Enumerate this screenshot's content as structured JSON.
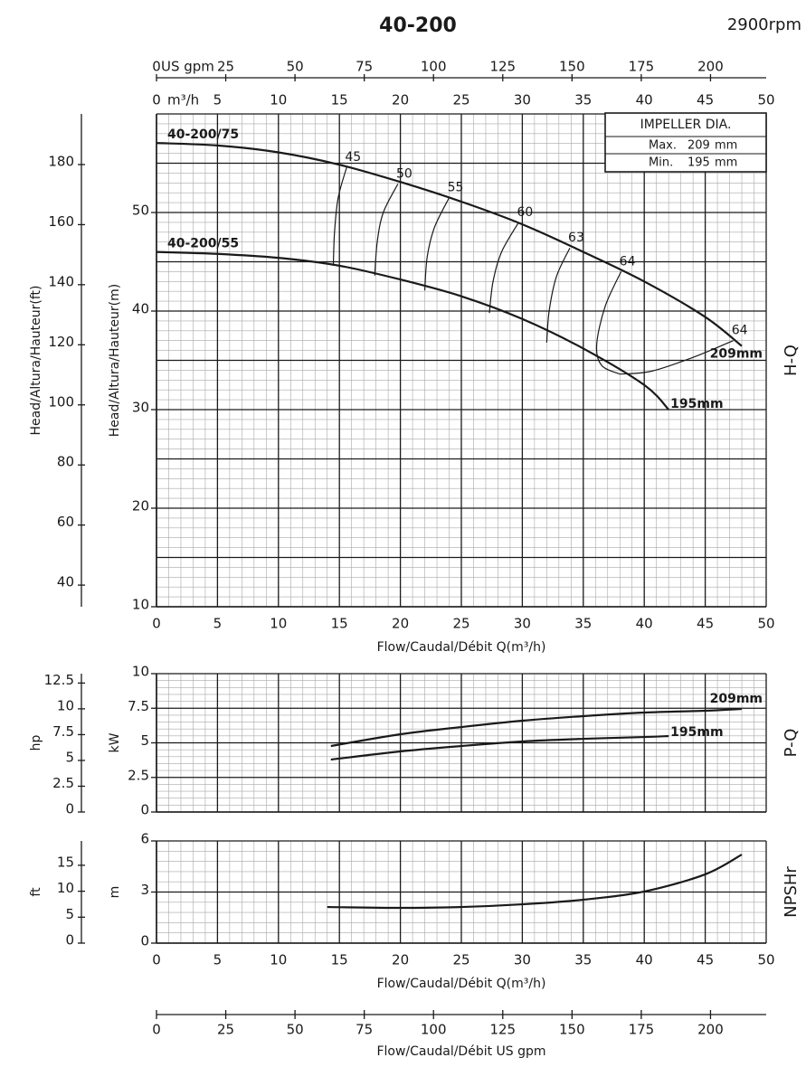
{
  "chart_data": [
    {
      "type": "line",
      "title": "40-200",
      "subtitle": "2900rpm",
      "xlabel": "Flow/Caudal/Débit Q(m³/h)",
      "xunit": "m³/h",
      "ylabel": "Head/Altura/Hauteur(m)",
      "y2label": "Head/Altura/Hauteur(ft)",
      "side_label": "H-Q",
      "xlim": [
        0,
        50
      ],
      "xticks": [
        0,
        5,
        10,
        15,
        20,
        25,
        30,
        35,
        40,
        45,
        50
      ],
      "ylim": [
        10,
        60
      ],
      "yticks": [
        10,
        20,
        30,
        40,
        50
      ],
      "ygrid": [
        10,
        15,
        20,
        25,
        30,
        35,
        40,
        45,
        50,
        55,
        60
      ],
      "y2lim": [
        32.8,
        196.85
      ],
      "y2ticks": [
        40,
        60,
        80,
        100,
        120,
        140,
        160,
        180
      ],
      "x2lim": [
        0,
        220.1
      ],
      "x2ticks": [
        0,
        25,
        50,
        75,
        100,
        125,
        150,
        175,
        200
      ],
      "x2unit": "US gpm",
      "series": [
        {
          "name": "40-200/75",
          "label": "209mm",
          "color": "#1a1a1a",
          "x": [
            0,
            5,
            10,
            15,
            20,
            25,
            30,
            35,
            40,
            45,
            48
          ],
          "values": [
            57.05,
            56.8,
            56.1,
            54.85,
            53.1,
            51.1,
            48.8,
            46.0,
            43.0,
            39.4,
            36.45
          ]
        },
        {
          "name": "40-200/55",
          "label": "195mm",
          "color": "#1a1a1a",
          "x": [
            0,
            5,
            10,
            15,
            20,
            25,
            30,
            35,
            40,
            42
          ],
          "values": [
            46.0,
            45.8,
            45.4,
            44.6,
            43.2,
            41.5,
            39.2,
            36.2,
            32.5,
            30.0
          ]
        }
      ],
      "efficiency": [
        {
          "label": "45",
          "x": [
            15.6,
            14.9,
            14.6,
            14.5
          ],
          "values": [
            54.6,
            51.5,
            48,
            44.6
          ]
        },
        {
          "label": "50",
          "x": [
            19.8,
            18.6,
            18.1,
            17.9
          ],
          "values": [
            52.9,
            50,
            47,
            43.6
          ]
        },
        {
          "label": "55",
          "x": [
            24.0,
            22.8,
            22.2,
            22.0
          ],
          "values": [
            51.5,
            48.5,
            45.5,
            42.1
          ]
        },
        {
          "label": "60",
          "x": [
            29.7,
            28.3,
            27.6,
            27.3
          ],
          "values": [
            49,
            46,
            43,
            39.8
          ]
        },
        {
          "label": "63",
          "x": [
            33.9,
            32.8,
            32.2,
            32.0
          ],
          "values": [
            46.4,
            43.5,
            40,
            36.8
          ]
        },
        {
          "label": "64",
          "x": [
            38.1,
            36.8,
            36.1,
            36.5,
            38.0
          ],
          "values": [
            44.0,
            40.5,
            36.6,
            34.5,
            33.6
          ]
        },
        {
          "label": "64",
          "x": [
            47.3,
            44,
            40.6,
            38.0
          ],
          "values": [
            37.0,
            35.3,
            33.9,
            33.6
          ]
        }
      ],
      "impeller": {
        "title": "IMPELLER DIA.",
        "rows": [
          [
            "Max.",
            "209",
            "mm"
          ],
          [
            "Min.",
            "195",
            "mm"
          ]
        ]
      }
    },
    {
      "type": "line",
      "ylabel": "kW",
      "y2label": "hp",
      "side_label": "P-Q",
      "xlim": [
        0,
        50
      ],
      "xgrid": [
        0,
        5,
        10,
        15,
        20,
        25,
        30,
        35,
        40,
        45,
        50
      ],
      "ylim": [
        0,
        10
      ],
      "yticks": [
        0,
        2.5,
        5,
        7.5,
        10
      ],
      "y2lim": [
        0,
        13.41
      ],
      "y2ticks": [
        0,
        2.5,
        5,
        7.5,
        10,
        12.5
      ],
      "series": [
        {
          "name": "209mm",
          "color": "#1a1a1a",
          "x": [
            14.3,
            20,
            25,
            30,
            35,
            40,
            45,
            48
          ],
          "values": [
            4.77,
            5.62,
            6.14,
            6.6,
            6.93,
            7.19,
            7.32,
            7.45
          ]
        },
        {
          "name": "195mm",
          "color": "#1a1a1a",
          "x": [
            14.3,
            20,
            25,
            30,
            35,
            40,
            42
          ],
          "values": [
            3.79,
            4.38,
            4.77,
            5.1,
            5.29,
            5.42,
            5.49
          ]
        }
      ]
    },
    {
      "type": "line",
      "ylabel": "m",
      "y2label": "ft",
      "side_label": "NPSHr",
      "xlabel": "Flow/Caudal/Débit Q(m³/h)",
      "xlim": [
        0,
        50
      ],
      "xticks": [
        0,
        5,
        10,
        15,
        20,
        25,
        30,
        35,
        40,
        45,
        50
      ],
      "ylim": [
        0,
        6
      ],
      "yticks": [
        0,
        3,
        6
      ],
      "y2lim": [
        0,
        19.69
      ],
      "y2ticks": [
        0,
        5,
        10,
        15
      ],
      "series": [
        {
          "color": "#1a1a1a",
          "x": [
            14,
            20,
            25,
            30,
            35,
            40,
            45,
            48
          ],
          "values": [
            2.12,
            2.07,
            2.12,
            2.28,
            2.55,
            3.03,
            4.04,
            5.2
          ]
        }
      ]
    },
    {
      "type": "axis",
      "xlabel": "Flow/Caudal/Débit  US gpm",
      "xlim": [
        0,
        220.1
      ],
      "xticks": [
        0,
        25,
        50,
        75,
        100,
        125,
        150,
        175,
        200
      ]
    }
  ]
}
